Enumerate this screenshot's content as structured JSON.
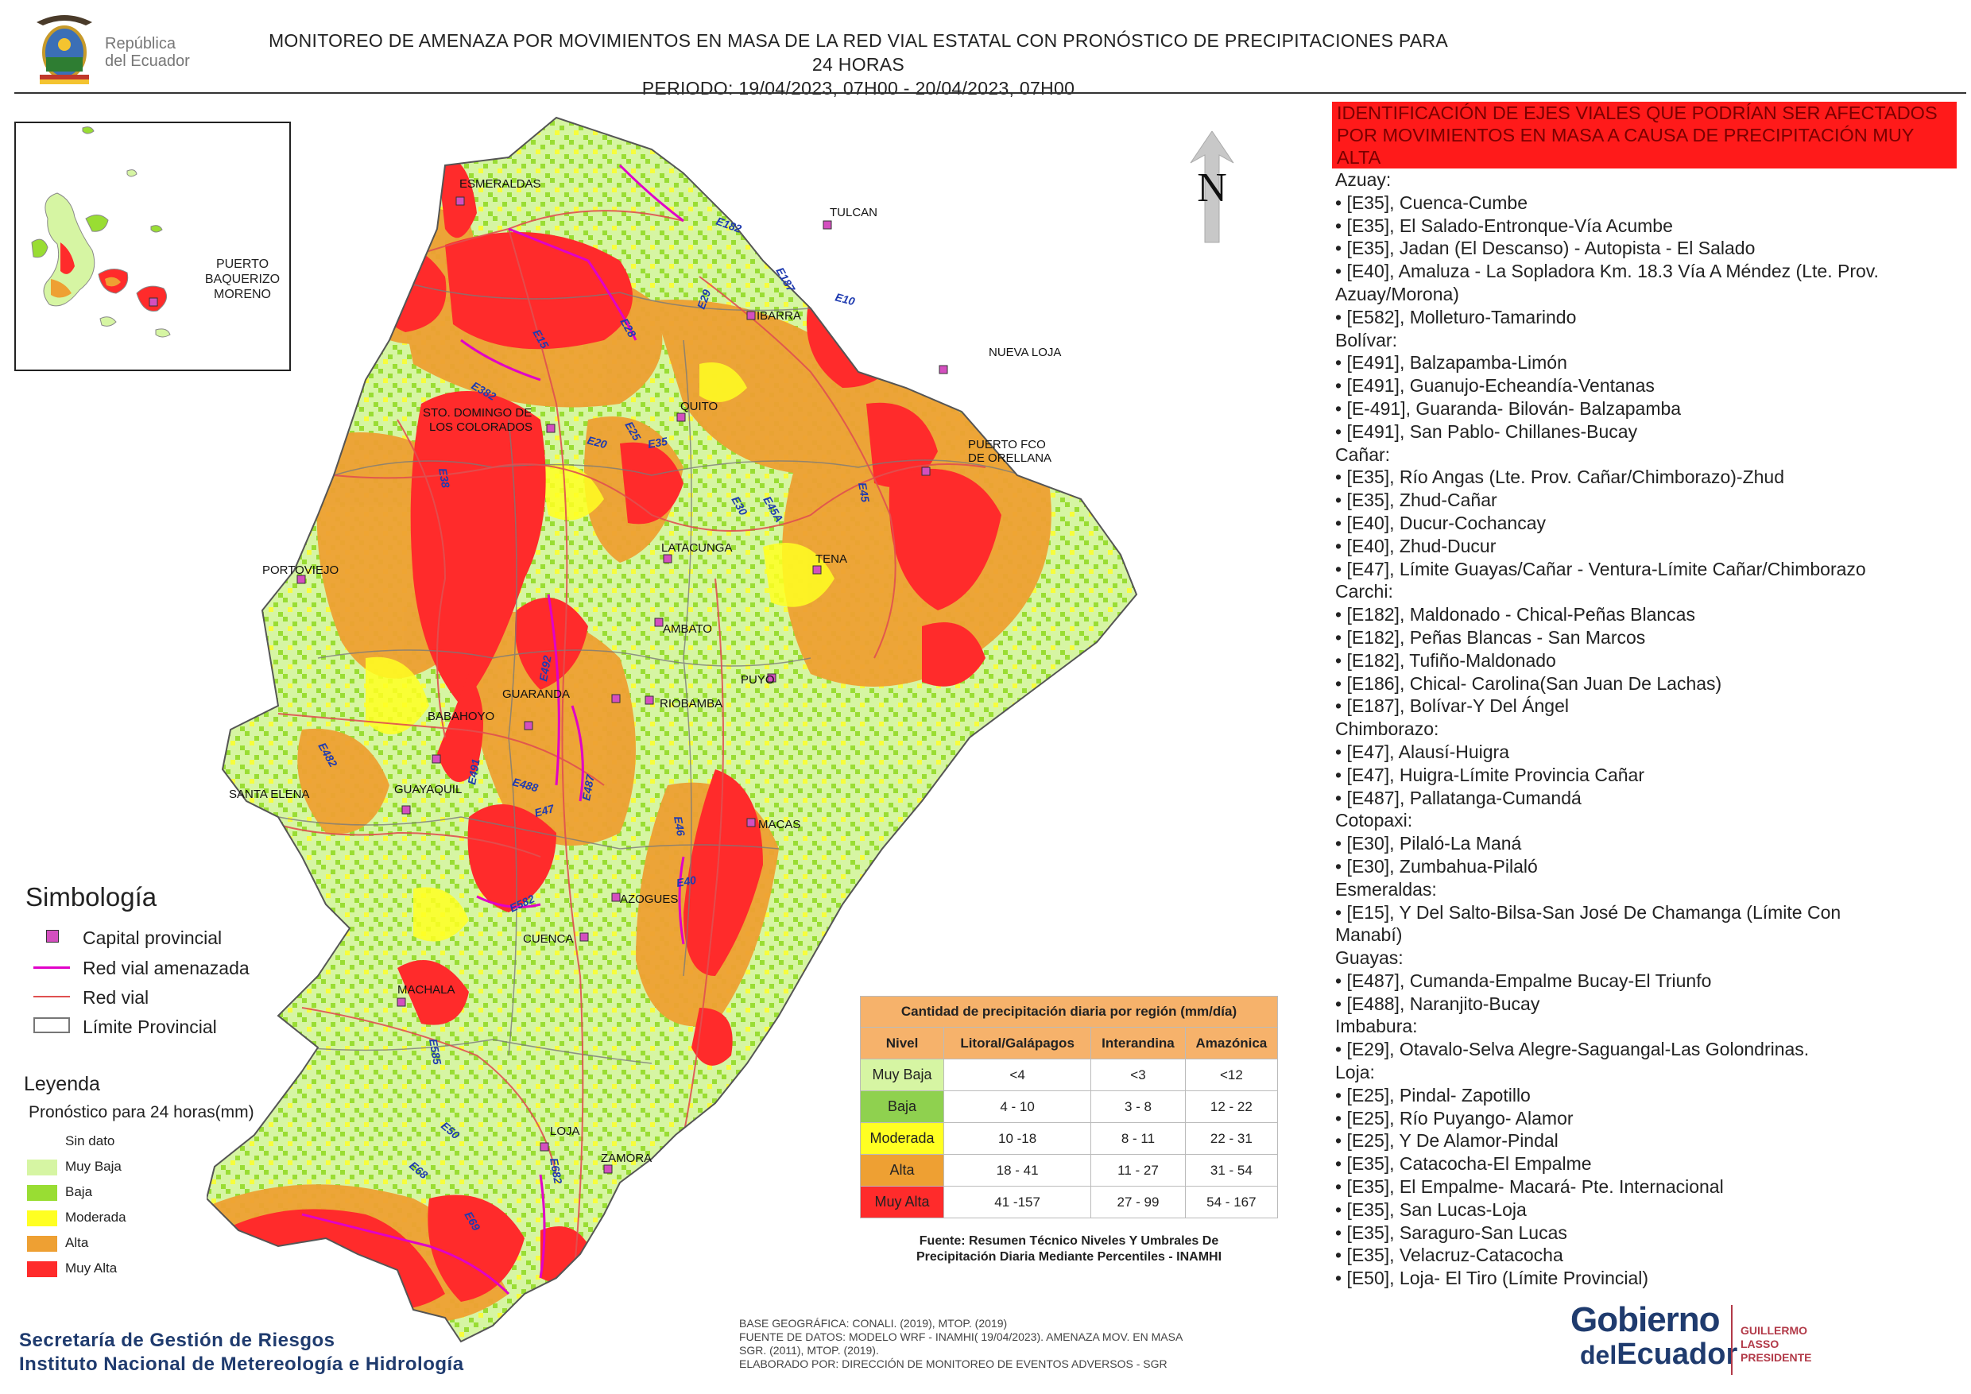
{
  "header": {
    "republic_logo_text_line1": "República",
    "republic_logo_text_line2": "del Ecuador",
    "title_line1": "MONITOREO DE AMENAZA POR MOVIMIENTOS EN MASA DE LA RED VIAL  ESTATAL  CON PRONÓSTICO  DE  PRECIPITACIONES PARA 24 HORAS",
    "title_line2": "PERIODO: 19/04/2023, 07H00 - 20/04/2023, 07H00"
  },
  "inset": {
    "city_label": "PUERTO BAQUERIZO MORENO"
  },
  "north_arrow": {
    "label": "N"
  },
  "colors": {
    "sin_dato": "#ffffff",
    "muy_baja": "#d6f5a3",
    "baja": "#99dd33",
    "moderada": "#ffff22",
    "alta": "#eea033",
    "muy_alta": "#ff2b2b",
    "red_vial_amenazada": "#e100c8",
    "red_vial": "#e05050",
    "capital": "#d44fbf",
    "header_red": "#ff1a1a",
    "table_header": "#f6b26b",
    "navy": "#1f3b6e"
  },
  "map": {
    "cities": [
      {
        "name": "ESMERALDAS"
      },
      {
        "name": "TULCAN"
      },
      {
        "name": "IBARRA"
      },
      {
        "name": "NUEVA LOJA"
      },
      {
        "name": "QUITO"
      },
      {
        "name": "STO. DOMINGO DE"
      },
      {
        "name": "LOS COLORADOS"
      },
      {
        "name": "PUERTO FCO"
      },
      {
        "name": "DE ORELLANA"
      },
      {
        "name": "LATACUNGA"
      },
      {
        "name": "TENA"
      },
      {
        "name": "PORTOVIEJO"
      },
      {
        "name": "AMBATO"
      },
      {
        "name": "PUYO"
      },
      {
        "name": "GUARANDA"
      },
      {
        "name": "RIOBAMBA"
      },
      {
        "name": "BABAHOYO"
      },
      {
        "name": "SANTA ELENA"
      },
      {
        "name": "GUAYAQUIL"
      },
      {
        "name": "MACAS"
      },
      {
        "name": "AZOGUES"
      },
      {
        "name": "CUENCA"
      },
      {
        "name": "MACHALA"
      },
      {
        "name": "LOJA"
      },
      {
        "name": "ZAMORA"
      }
    ],
    "roads": [
      "E182",
      "E187",
      "E10",
      "E29",
      "E28",
      "E15",
      "E382",
      "E25",
      "E20",
      "E35",
      "E38",
      "E30",
      "E45A",
      "E45",
      "E482",
      "E491",
      "E487",
      "E492",
      "E46",
      "E488",
      "E47",
      "E40",
      "E582",
      "E585",
      "E50",
      "E69",
      "E682",
      "E68"
    ]
  },
  "roads_panel": {
    "title": "IDENTIFICACIÓN DE EJES VIALES QUE PODRÍAN SER AFECTADOS POR MOVIMIENTOS EN MASA A CAUSA DE PRECIPITACIÓN MUY ALTA",
    "lines": [
      {
        "kind": "prov",
        "text": "Azuay:"
      },
      {
        "kind": "road",
        "text": "• [E35], Cuenca-Cumbe"
      },
      {
        "kind": "road",
        "text": "• [E35], El Salado-Entronque-Vía Acumbe"
      },
      {
        "kind": "road",
        "text": "• [E35], Jadan (El Descanso) -  Autopista - El Salado"
      },
      {
        "kind": "road",
        "text": "• [E40], Amaluza - La Sopladora Km. 18.3 Vía A Méndez (Lte. Prov."
      },
      {
        "kind": "cont",
        "text": "Azuay/Morona)"
      },
      {
        "kind": "road",
        "text": "• [E582], Molleturo-Tamarindo"
      },
      {
        "kind": "prov",
        "text": "Bolívar:"
      },
      {
        "kind": "road",
        "text": "• [E491], Balzapamba-Limón"
      },
      {
        "kind": "road",
        "text": "• [E491], Guanujo-Echeandía-Ventanas"
      },
      {
        "kind": "road",
        "text": "• [E-491], Guaranda- Bilován- Balzapamba"
      },
      {
        "kind": "road",
        "text": "• [E491], San Pablo- Chillanes-Bucay"
      },
      {
        "kind": "prov",
        "text": "Cañar:"
      },
      {
        "kind": "road",
        "text": "• [E35], Río Angas (Lte. Prov. Cañar/Chimborazo)-Zhud"
      },
      {
        "kind": "road",
        "text": "• [E35], Zhud-Cañar"
      },
      {
        "kind": "road",
        "text": "• [E40], Ducur-Cochancay"
      },
      {
        "kind": "road",
        "text": "• [E40], Zhud-Ducur"
      },
      {
        "kind": "road",
        "text": "• [E47], Límite Guayas/Cañar - Ventura-Límite Cañar/Chimborazo"
      },
      {
        "kind": "prov",
        "text": "Carchi:"
      },
      {
        "kind": "road",
        "text": "• [E182], Maldonado - Chical-Peñas Blancas"
      },
      {
        "kind": "road",
        "text": "• [E182], Peñas Blancas - San Marcos"
      },
      {
        "kind": "road",
        "text": "• [E182], Tufiño-Maldonado"
      },
      {
        "kind": "road",
        "text": "• [E186], Chical- Carolina(San Juan De Lachas)"
      },
      {
        "kind": "road",
        "text": "• [E187], Bolívar-Y Del Ángel"
      },
      {
        "kind": "prov",
        "text": "Chimborazo:"
      },
      {
        "kind": "road",
        "text": "• [E47], Alausí-Huigra"
      },
      {
        "kind": "road",
        "text": "• [E47], Huigra-Límite Provincia Cañar"
      },
      {
        "kind": "road",
        "text": "• [E487], Pallatanga-Cumandá"
      },
      {
        "kind": "prov",
        "text": "Cotopaxi:"
      },
      {
        "kind": "road",
        "text": "• [E30], Pilaló-La Maná"
      },
      {
        "kind": "road",
        "text": "• [E30], Zumbahua-Pilaló"
      },
      {
        "kind": "prov",
        "text": "Esmeraldas:"
      },
      {
        "kind": "road",
        "text": "• [E15], Y Del Salto-Bilsa-San José De Chamanga (Límite Con"
      },
      {
        "kind": "cont",
        "text": "Manabí)"
      },
      {
        "kind": "prov",
        "text": "Guayas:"
      },
      {
        "kind": "road",
        "text": "• [E487], Cumanda-Empalme Bucay-El Triunfo"
      },
      {
        "kind": "road",
        "text": "• [E488], Naranjito-Bucay"
      },
      {
        "kind": "prov",
        "text": "Imbabura:"
      },
      {
        "kind": "road",
        "text": "• [E29], Otavalo-Selva Alegre-Saguangal-Las Golondrinas."
      },
      {
        "kind": "prov",
        "text": "Loja:"
      },
      {
        "kind": "road",
        "text": "• [E25], Pindal- Zapotillo"
      },
      {
        "kind": "road",
        "text": "• [E25], Río Puyango- Alamor"
      },
      {
        "kind": "road",
        "text": "• [E25], Y De Alamor-Pindal"
      },
      {
        "kind": "road",
        "text": "• [E35], Catacocha-El Empalme"
      },
      {
        "kind": "road",
        "text": "• [E35], El Empalme- Macará- Pte. Internacional"
      },
      {
        "kind": "road",
        "text": "• [E35], San Lucas-Loja"
      },
      {
        "kind": "road",
        "text": "• [E35], Saraguro-San Lucas"
      },
      {
        "kind": "road",
        "text": "• [E35], Velacruz-Catacocha"
      },
      {
        "kind": "road",
        "text": "• [E50], Loja- El Tiro (Límite Provincial)"
      }
    ]
  },
  "symbology": {
    "title": "Simbología",
    "items": [
      {
        "label": "Capital provincial"
      },
      {
        "label": "Red vial amenazada"
      },
      {
        "label": "Red vial"
      },
      {
        "label": "Límite Provincial"
      }
    ]
  },
  "legend": {
    "title": "Leyenda",
    "subtitle": "Pronóstico para 24 horas(mm)",
    "items": [
      {
        "label": "Sin dato"
      },
      {
        "label": "Muy Baja"
      },
      {
        "label": "Baja"
      },
      {
        "label": "Moderada"
      },
      {
        "label": "Alta"
      },
      {
        "label": "Muy Alta"
      }
    ]
  },
  "precip_table": {
    "caption": "Cantidad de precipitación diaria por región (mm/día)",
    "headers": [
      "Nivel",
      "Litoral/Galápagos",
      "Interandina",
      "Amazónica"
    ],
    "rows": [
      {
        "level": "Muy Baja",
        "litoral": "<4",
        "interandina": "<3",
        "amazonica": "<12"
      },
      {
        "level": "Baja",
        "litoral": "4 - 10",
        "interandina": "3 - 8",
        "amazonica": "12 - 22"
      },
      {
        "level": "Moderada",
        "litoral": "10 -18",
        "interandina": "8 - 11",
        "amazonica": "22 - 31"
      },
      {
        "level": "Alta",
        "litoral": "18 - 41",
        "interandina": "11 - 27",
        "amazonica": "31 - 54"
      },
      {
        "level": "Muy Alta",
        "litoral": "41 -157",
        "interandina": "27 - 99",
        "amazonica": "54 - 167"
      }
    ],
    "source_line1": "Fuente: Resumen Técnico Niveles Y Umbrales De",
    "source_line2": "Precipitación Diaria Mediante Percentiles - INAMHI"
  },
  "footer": {
    "org_line1": "Secretaría de Gestión de Riesgos",
    "org_line2": "Instituto Nacional de Metereología e Hidrología",
    "credits_line1": "BASE GEOGRÁFICA: CONALI. (2019), MTOP. (2019)",
    "credits_line2": "FUENTE DE DATOS: MODELO WRF - INAMHI( 19/04/2023).  AMENAZA MOV. EN MASA",
    "credits_line3": "SGR. (2011), MTOP. (2019).",
    "credits_line4": "ELABORADO POR: DIRECCIÓN DE MONITOREO DE EVENTOS ADVERSOS - SGR",
    "gob_word": "Gobierno",
    "del_word": "del",
    "ecuador_word": "Ecuador",
    "president_line1": "GUILLERMO LASSO",
    "president_line2": "PRESIDENTE"
  }
}
